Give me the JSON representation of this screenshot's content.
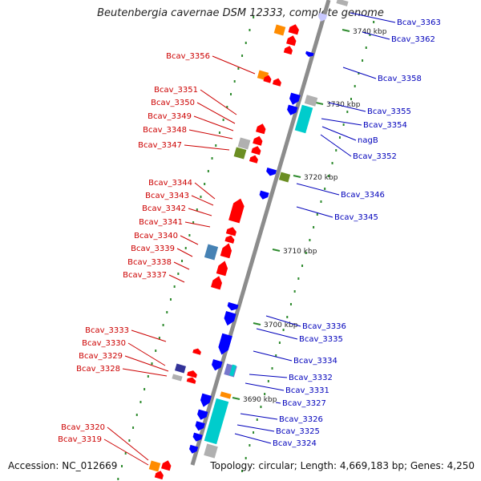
{
  "title": "Beutenbergia cavernae DSM 12333, complete genome",
  "accession": "Accession: NC_012669",
  "topology": "Topology: circular; Length: 4,669,183 bp; Genes: 4,250",
  "colors": {
    "backbone": "#8c8c8c",
    "dots": "#2e8b2e",
    "minus_strand_label": "#cc0000",
    "plus_strand_label": "#0000bb",
    "gene_red": "#ff0000",
    "gene_blue": "#0000ff",
    "cyan": "#00cccc",
    "orange": "#ff8c00",
    "olive": "#6b8e23",
    "steelblue": "#4682b4",
    "grey": "#b0b0b0"
  },
  "kbp_marks": [
    "3740 kbp",
    "3730 kbp",
    "3720 kbp",
    "3710 kbp",
    "3700 kbp",
    "3690 kbp"
  ],
  "left_labels": [
    "Bcav_3356",
    "Bcav_3351",
    "Bcav_3350",
    "Bcav_3349",
    "Bcav_3348",
    "Bcav_3347",
    "Bcav_3344",
    "Bcav_3343",
    "Bcav_3342",
    "Bcav_3341",
    "Bcav_3340",
    "Bcav_3339",
    "Bcav_3338",
    "Bcav_3337",
    "Bcav_3333",
    "Bcav_3330",
    "Bcav_3329",
    "Bcav_3328",
    "Bcav_3320",
    "Bcav_3319"
  ],
  "right_labels": [
    "Bcav_3363",
    "Bcav_3362",
    "Bcav_3358",
    "Bcav_3355",
    "Bcav_3354",
    "nagB",
    "Bcav_3352",
    "Bcav_3346",
    "Bcav_3345",
    "Bcav_3336",
    "Bcav_3335",
    "Bcav_3334",
    "Bcav_3332",
    "Bcav_3331",
    "Bcav_3327",
    "Bcav_3326",
    "Bcav_3325",
    "Bcav_3324"
  ]
}
